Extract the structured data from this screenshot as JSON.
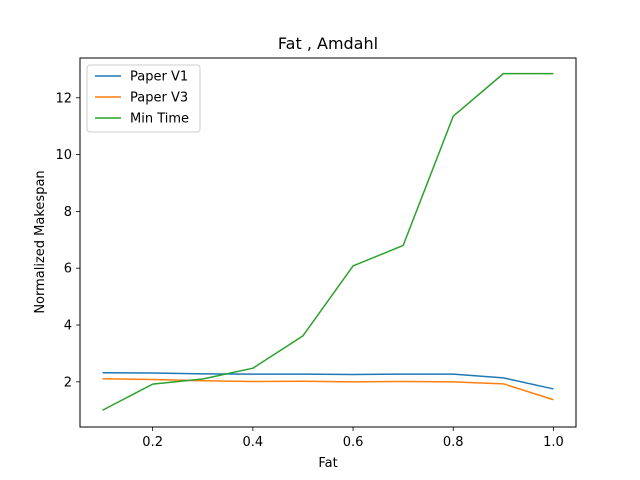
{
  "chart_data": {
    "type": "line",
    "title": "Fat , Amdahl",
    "xlabel": "Fat",
    "ylabel": "Normalized Makespan",
    "xlim": [
      0.055,
      1.045
    ],
    "ylim": [
      0.41,
      13.4
    ],
    "xticks": [
      0.2,
      0.4,
      0.6,
      0.8,
      1.0
    ],
    "xtick_labels": [
      "0.2",
      "0.4",
      "0.6",
      "0.8",
      "1.0"
    ],
    "yticks": [
      2,
      4,
      6,
      8,
      10,
      12
    ],
    "ytick_labels": [
      "2",
      "4",
      "6",
      "8",
      "10",
      "12"
    ],
    "grid": false,
    "legend_position": "top-left",
    "x": [
      0.1,
      0.2,
      0.3,
      0.4,
      0.5,
      0.6,
      0.7,
      0.8,
      0.9,
      1.0
    ],
    "series": [
      {
        "name": "Paper V1",
        "color": "#1f77b4",
        "values": [
          2.32,
          2.31,
          2.28,
          2.27,
          2.27,
          2.26,
          2.27,
          2.27,
          2.14,
          1.75
        ]
      },
      {
        "name": "Paper V3",
        "color": "#ff7f0e",
        "values": [
          2.11,
          2.08,
          2.04,
          2.01,
          2.02,
          2.0,
          2.01,
          2.0,
          1.93,
          1.37
        ]
      },
      {
        "name": "Min Time",
        "color": "#2ca02c",
        "values": [
          1.0,
          1.92,
          2.1,
          2.48,
          3.62,
          6.08,
          6.8,
          11.35,
          12.85,
          12.85
        ]
      }
    ]
  }
}
